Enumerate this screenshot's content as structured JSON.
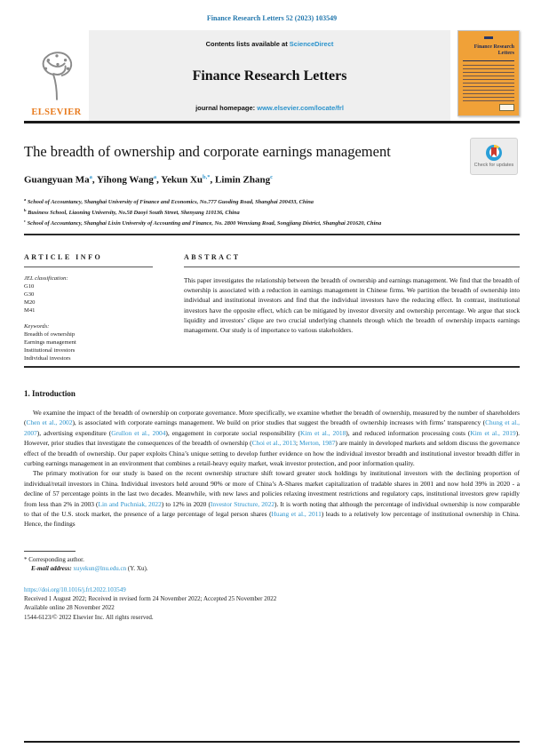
{
  "page": {
    "header_citation": "Finance Research Letters 52 (2023) 103549"
  },
  "masthead": {
    "contents_prefix": "Contents lists available at ",
    "sciencedirect_label": "ScienceDirect",
    "journal_title": "Finance Research Letters",
    "homepage_prefix": "journal homepage: ",
    "homepage_url": "www.elsevier.com/locate/frl",
    "publisher": "ELSEVIER",
    "cover_title": "Finance Research Letters"
  },
  "article": {
    "title": "The breadth of ownership and corporate earnings management",
    "check_updates_label": "Check for updates",
    "authors": [
      {
        "name": "Guangyuan Ma",
        "sup": "a",
        "sep": ", "
      },
      {
        "name": "Yihong Wang",
        "sup": "a",
        "sep": ", "
      },
      {
        "name": "Yekun Xu",
        "sup": "b,*",
        "sep": ", "
      },
      {
        "name": "Limin Zhang",
        "sup": "c",
        "sep": ""
      }
    ],
    "affiliations": [
      {
        "sup": "a",
        "text": " School of Accountancy, Shanghai University of Finance and Economics, No.777 Guoding Road, Shanghai 200433, China"
      },
      {
        "sup": "b",
        "text": " Business School, Liaoning University, No.58 Daoyi South Street, Shenyang 110136, China"
      },
      {
        "sup": "c",
        "text": " School of Accountancy, Shanghai Lixin University of Accounting and Finance, No. 2800 Wenxiang Road, Songjiang District, Shanghai 201620, China"
      }
    ]
  },
  "article_info": {
    "heading": "ARTICLE INFO",
    "jel_label": "JEL classification:",
    "jel_codes": [
      "G10",
      "G30",
      "M20",
      "M41"
    ],
    "keywords_label": "Keywords:",
    "keywords": [
      "Breadth of ownership",
      "Earnings management",
      "Institutional investors",
      "Individual investors"
    ]
  },
  "abstract": {
    "heading": "ABSTRACT",
    "text": "This paper investigates the relationship between the breadth of ownership and earnings management. We find that the breadth of ownership is associated with a reduction in earnings management in Chinese firms. We partition the breadth of ownership into individual and institutional investors and find that the individual investors have the reducing effect. In contrast, institutional investors have the opposite effect, which can be mitigated by investor diversity and ownership percentage. We argue that stock liquidity and investors’ clique are two crucial underlying channels through which the breadth of ownership impacts earnings management. Our study is of importance to various stakeholders."
  },
  "introduction": {
    "heading": "1. Introduction",
    "paragraphs": [
      [
        {
          "t": "We examine the impact of the breadth of ownership on corporate governance. More specifically, we examine whether the breadth of ownership, measured by the number of shareholders ("
        },
        {
          "t": "Chen et al., 2002",
          "link": true
        },
        {
          "t": "), is associated with corporate earnings management. We build on prior studies that suggest the breadth of ownership increases with firms’ transparency ("
        },
        {
          "t": "Chung et al., 2007",
          "link": true
        },
        {
          "t": "), advertising expenditure ("
        },
        {
          "t": "Grullon et al., 2004",
          "link": true
        },
        {
          "t": "), engagement in corporate social responsibility ("
        },
        {
          "t": "Kim et al., 2018",
          "link": true
        },
        {
          "t": "), and reduced information processing costs ("
        },
        {
          "t": "Kim et al., 2019",
          "link": true
        },
        {
          "t": "). However, prior studies that investigate the consequences of the breadth of ownership ("
        },
        {
          "t": "Choi et al., 2013",
          "link": true
        },
        {
          "t": "; "
        },
        {
          "t": "Merton, 1987",
          "link": true
        },
        {
          "t": ") are mainly in developed markets and seldom discuss the governance effect of the breadth of ownership. Our paper exploits China’s unique setting to develop further evidence on how the individual investor breadth and institutional investor breadth differ in curbing earnings management in an environment that combines a retail-heavy equity market, weak investor protection, and poor information quality."
        }
      ],
      [
        {
          "t": "The primary motivation for our study is based on the recent ownership structure shift toward greater stock holdings by institutional investors with the declining proportion of individual/retail investors in China. Individual investors held around 90% or more of China’s A-Shares market capitalization of tradable shares in 2001 and now hold 39% in 2020 - a decline of 57 percentage points in the last two decades. Meanwhile, with new laws and policies relaxing investment restrictions and regulatory caps, institutional investors grew rapidly from less than 2% in 2003 ("
        },
        {
          "t": "Lin and Puchniak, 2022",
          "link": true
        },
        {
          "t": ") to 12% in 2020 ("
        },
        {
          "t": "Investor Structure, 2022",
          "link": true
        },
        {
          "t": "). It is worth noting that although the percentage of individual ownership is now comparable to that of the U.S. stock market, the presence of a large percentage of legal person shares ("
        },
        {
          "t": "Huang et al., 2011",
          "link": true
        },
        {
          "t": ") leads to a relatively low percentage of institutional ownership in China. Hence, the findings"
        }
      ]
    ]
  },
  "footnotes": {
    "corresponding": "* Corresponding author.",
    "email_label": "E-mail address: ",
    "email": "xuyekun@lnu.edu.cn",
    "email_suffix": " (Y. Xu)."
  },
  "footer": {
    "doi": "https://doi.org/10.1016/j.frl.2022.103549",
    "received": "Received 1 August 2022; Received in revised form 24 November 2022; Accepted 25 November 2022",
    "available": "Available online 28 November 2022",
    "copyright": "1544-6123/© 2022 Elsevier Inc. All rights reserved."
  },
  "colors": {
    "link_blue": "#2b93cc",
    "elsevier_orange": "#e87b1e",
    "cover_orange": "#f0a138"
  }
}
